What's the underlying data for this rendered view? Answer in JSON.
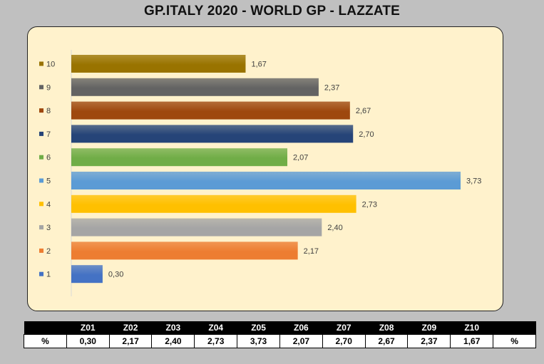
{
  "chart_data": {
    "type": "bar",
    "orientation": "horizontal",
    "title": "GP.ITALY 2020 - WORLD GP - LAZZATE",
    "categories": [
      "1",
      "2",
      "3",
      "4",
      "5",
      "6",
      "7",
      "8",
      "9",
      "10"
    ],
    "values": [
      0.3,
      2.17,
      2.4,
      2.73,
      3.73,
      2.07,
      2.7,
      2.67,
      2.37,
      1.67
    ],
    "value_labels": [
      "0,30",
      "2,17",
      "2,40",
      "2,73",
      "3,73",
      "2,07",
      "2,70",
      "2,67",
      "2,37",
      "1,67"
    ],
    "colors": [
      "#4472c4",
      "#ed7d31",
      "#a5a5a5",
      "#ffc000",
      "#5b9bd5",
      "#70ad47",
      "#264478",
      "#9e480e",
      "#636363",
      "#997300"
    ],
    "xlim": [
      0,
      3.73
    ],
    "grid": false,
    "legend": "left"
  },
  "table": {
    "header": [
      "",
      "Z01",
      "Z02",
      "Z03",
      "Z04",
      "Z05",
      "Z06",
      "Z07",
      "Z08",
      "Z09",
      "Z10",
      ""
    ],
    "values": [
      "%",
      "0,30",
      "2,17",
      "2,40",
      "2,73",
      "3,73",
      "2,07",
      "2,70",
      "2,67",
      "2,37",
      "1,67",
      "%"
    ]
  }
}
